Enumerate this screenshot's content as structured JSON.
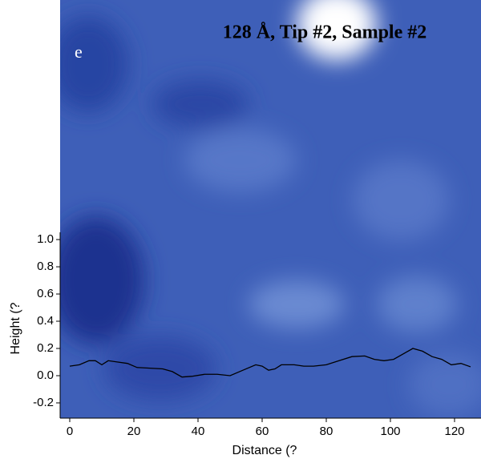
{
  "chart_data": {
    "type": "line",
    "title": "128 Å, Tip #2, Sample #2",
    "panel_label": "e",
    "x_label": "Distance (?",
    "y_label": "Height (?",
    "series": [
      {
        "color": "#000000",
        "x": [
          0,
          3,
          6,
          8,
          10,
          12,
          15,
          18,
          21,
          25,
          29,
          32,
          35,
          38,
          42,
          46,
          50,
          54,
          58,
          60,
          62,
          64,
          66,
          70,
          73,
          76,
          80,
          84,
          88,
          92,
          95,
          98,
          101,
          104,
          107,
          110,
          113,
          116,
          119,
          122,
          125
        ],
        "values": [
          0.07,
          0.08,
          0.11,
          0.11,
          0.08,
          0.11,
          0.1,
          0.09,
          0.06,
          0.055,
          0.05,
          0.03,
          -0.01,
          -0.005,
          0.01,
          0.01,
          0.0,
          0.04,
          0.08,
          0.07,
          0.04,
          0.05,
          0.08,
          0.08,
          0.07,
          0.07,
          0.08,
          0.11,
          0.14,
          0.145,
          0.12,
          0.11,
          0.12,
          0.16,
          0.2,
          0.18,
          0.14,
          0.12,
          0.08,
          0.09,
          0.065
        ]
      }
    ],
    "xlim": [
      -3,
      128.25
    ],
    "ylim": [
      -0.312,
      2.76
    ],
    "xticks": [
      0,
      20,
      40,
      60,
      80,
      100,
      120
    ],
    "yticks": [
      {
        "value": -0.2,
        "label": "-0.2"
      },
      {
        "value": 0,
        "label": "0.0"
      },
      0.2,
      0.4,
      0.6,
      0.8,
      {
        "value": 1,
        "label": "1.0"
      }
    ]
  }
}
